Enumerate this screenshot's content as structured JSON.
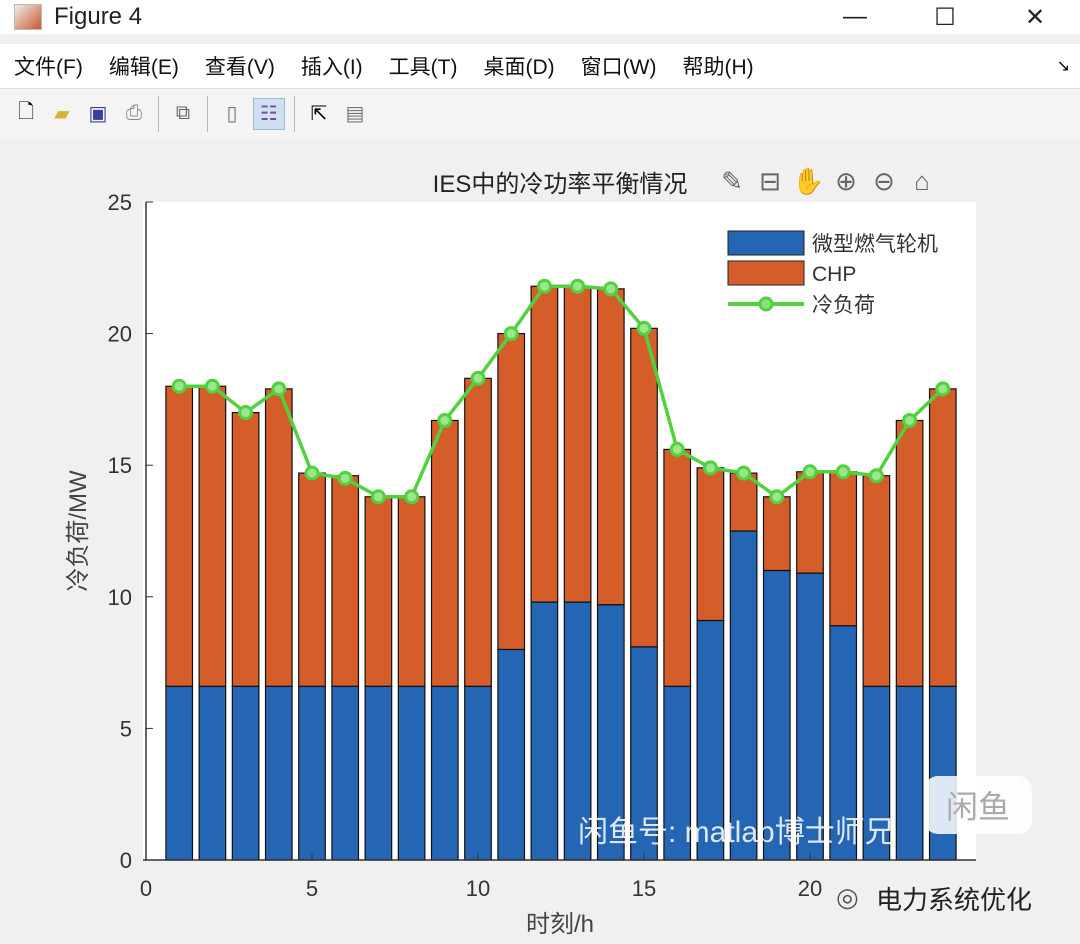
{
  "window": {
    "title": "Figure 4",
    "controls": [
      "—",
      "☐",
      "✕"
    ]
  },
  "menu": [
    "文件(F)",
    "编辑(E)",
    "查看(V)",
    "插入(I)",
    "工具(T)",
    "桌面(D)",
    "窗口(W)",
    "帮助(H)"
  ],
  "toolbar": [
    "new-file",
    "open-folder",
    "save",
    "print",
    "link-plot",
    "colorbar",
    "legend",
    "pointer",
    "property-inspector"
  ],
  "axes_toolbar": [
    "brush",
    "data-tip",
    "pan",
    "zoom-in",
    "zoom-out",
    "home"
  ],
  "colors": {
    "blue": "#2466b3",
    "orange": "#d45d29",
    "green": "#52d13f"
  },
  "chart_data": {
    "type": "bar",
    "stacked": true,
    "title": "IES中的冷功率平衡情况",
    "xlabel": "时刻/h",
    "ylabel": "冷负荷/MW",
    "xlim": [
      0,
      25
    ],
    "ylim": [
      0,
      25
    ],
    "xticks": [
      0,
      5,
      10,
      15,
      20
    ],
    "yticks": [
      0,
      5,
      10,
      15,
      20,
      25
    ],
    "legend_position": "top-right",
    "x": [
      1,
      2,
      3,
      4,
      5,
      6,
      7,
      8,
      9,
      10,
      11,
      12,
      13,
      14,
      15,
      16,
      17,
      18,
      19,
      20,
      21,
      22,
      23,
      24
    ],
    "series": [
      {
        "name": "微型燃气轮机",
        "type": "bar",
        "values": [
          6.6,
          6.6,
          6.6,
          6.6,
          6.6,
          6.6,
          6.6,
          6.6,
          6.6,
          6.6,
          8.0,
          9.8,
          9.8,
          9.7,
          8.1,
          6.6,
          9.1,
          12.5,
          11.0,
          10.9,
          8.9,
          6.6,
          6.6,
          6.6
        ]
      },
      {
        "name": "CHP",
        "type": "bar",
        "values": [
          11.4,
          11.4,
          10.4,
          11.3,
          8.1,
          8.0,
          7.2,
          7.2,
          10.1,
          11.7,
          12.0,
          12.0,
          12.0,
          12.0,
          12.1,
          9.0,
          5.8,
          2.2,
          2.8,
          3.85,
          5.85,
          8.0,
          10.1,
          11.3
        ]
      },
      {
        "name": "冷负荷",
        "type": "line",
        "values": [
          18.0,
          18.0,
          17.0,
          17.9,
          14.7,
          14.5,
          13.8,
          13.8,
          16.7,
          18.3,
          20.0,
          21.8,
          21.8,
          21.7,
          20.2,
          15.6,
          14.9,
          14.7,
          13.8,
          14.75,
          14.75,
          14.6,
          16.7,
          17.9
        ]
      }
    ]
  },
  "watermark": {
    "logo": "闲鱼",
    "account": "闲鱼号: matlab博士师兄",
    "wechat": "电力系统优化"
  }
}
